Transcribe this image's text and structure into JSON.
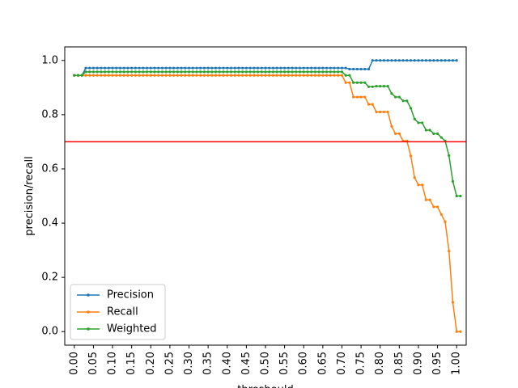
{
  "chart_data": {
    "type": "line",
    "title": "",
    "xlabel": "threshould",
    "ylabel": "precision/recall",
    "xlim": [
      -0.025,
      1.025
    ],
    "ylim": [
      -0.05,
      1.05
    ],
    "xticks": [
      "0.00",
      "0.05",
      "0.10",
      "0.15",
      "0.20",
      "0.25",
      "0.30",
      "0.35",
      "0.40",
      "0.45",
      "0.50",
      "0.55",
      "0.60",
      "0.65",
      "0.70",
      "0.75",
      "0.80",
      "0.85",
      "0.90",
      "0.95",
      "1.00"
    ],
    "yticks": [
      "0.0",
      "0.2",
      "0.4",
      "0.6",
      "0.8",
      "1.0"
    ],
    "grid": false,
    "legend_position": "lower-left",
    "hline": {
      "y": 0.7,
      "color": "#ff0000"
    },
    "series": [
      {
        "name": "Precision",
        "color": "#1f77b4",
        "points": [
          [
            0.0,
            0.945
          ],
          [
            0.01,
            0.945
          ],
          [
            0.02,
            0.945
          ],
          [
            0.03,
            0.972
          ],
          [
            0.04,
            0.972
          ],
          [
            0.5,
            0.972
          ],
          [
            0.7,
            0.972
          ],
          [
            0.71,
            0.972
          ],
          [
            0.72,
            0.968
          ],
          [
            0.73,
            0.968
          ],
          [
            0.74,
            0.968
          ],
          [
            0.75,
            0.968
          ],
          [
            0.76,
            0.968
          ],
          [
            0.77,
            0.968
          ],
          [
            0.78,
            1.0
          ],
          [
            0.79,
            1.0
          ],
          [
            0.8,
            1.0
          ],
          [
            0.9,
            1.0
          ],
          [
            1.0,
            1.0
          ]
        ]
      },
      {
        "name": "Recall",
        "color": "#ff7f0e",
        "points": [
          [
            0.0,
            0.945
          ],
          [
            0.01,
            0.945
          ],
          [
            0.02,
            0.945
          ],
          [
            0.03,
            0.945
          ],
          [
            0.5,
            0.945
          ],
          [
            0.69,
            0.945
          ],
          [
            0.7,
            0.945
          ],
          [
            0.71,
            0.918
          ],
          [
            0.72,
            0.918
          ],
          [
            0.73,
            0.865
          ],
          [
            0.74,
            0.865
          ],
          [
            0.75,
            0.865
          ],
          [
            0.76,
            0.865
          ],
          [
            0.77,
            0.838
          ],
          [
            0.78,
            0.838
          ],
          [
            0.79,
            0.81
          ],
          [
            0.8,
            0.81
          ],
          [
            0.81,
            0.81
          ],
          [
            0.82,
            0.81
          ],
          [
            0.83,
            0.757
          ],
          [
            0.84,
            0.73
          ],
          [
            0.85,
            0.73
          ],
          [
            0.86,
            0.703
          ],
          [
            0.87,
            0.703
          ],
          [
            0.88,
            0.648
          ],
          [
            0.89,
            0.568
          ],
          [
            0.9,
            0.541
          ],
          [
            0.91,
            0.541
          ],
          [
            0.92,
            0.486
          ],
          [
            0.93,
            0.486
          ],
          [
            0.94,
            0.46
          ],
          [
            0.95,
            0.46
          ],
          [
            0.96,
            0.432
          ],
          [
            0.97,
            0.405
          ],
          [
            0.98,
            0.297
          ],
          [
            0.99,
            0.108
          ],
          [
            1.0,
            0.0
          ],
          [
            1.01,
            0.0
          ]
        ]
      },
      {
        "name": "Weighted",
        "color": "#2ca02c",
        "points": [
          [
            0.0,
            0.945
          ],
          [
            0.01,
            0.945
          ],
          [
            0.02,
            0.945
          ],
          [
            0.03,
            0.958
          ],
          [
            0.04,
            0.958
          ],
          [
            0.5,
            0.958
          ],
          [
            0.69,
            0.958
          ],
          [
            0.7,
            0.958
          ],
          [
            0.71,
            0.945
          ],
          [
            0.72,
            0.945
          ],
          [
            0.73,
            0.918
          ],
          [
            0.74,
            0.918
          ],
          [
            0.75,
            0.918
          ],
          [
            0.76,
            0.918
          ],
          [
            0.77,
            0.903
          ],
          [
            0.78,
            0.903
          ],
          [
            0.79,
            0.905
          ],
          [
            0.8,
            0.905
          ],
          [
            0.81,
            0.905
          ],
          [
            0.82,
            0.905
          ],
          [
            0.83,
            0.878
          ],
          [
            0.84,
            0.865
          ],
          [
            0.85,
            0.865
          ],
          [
            0.86,
            0.851
          ],
          [
            0.87,
            0.851
          ],
          [
            0.88,
            0.824
          ],
          [
            0.89,
            0.784
          ],
          [
            0.9,
            0.77
          ],
          [
            0.91,
            0.77
          ],
          [
            0.92,
            0.743
          ],
          [
            0.93,
            0.743
          ],
          [
            0.94,
            0.73
          ],
          [
            0.95,
            0.73
          ],
          [
            0.96,
            0.716
          ],
          [
            0.97,
            0.703
          ],
          [
            0.98,
            0.649
          ],
          [
            0.99,
            0.554
          ],
          [
            1.0,
            0.5
          ],
          [
            1.01,
            0.5
          ]
        ]
      }
    ]
  }
}
